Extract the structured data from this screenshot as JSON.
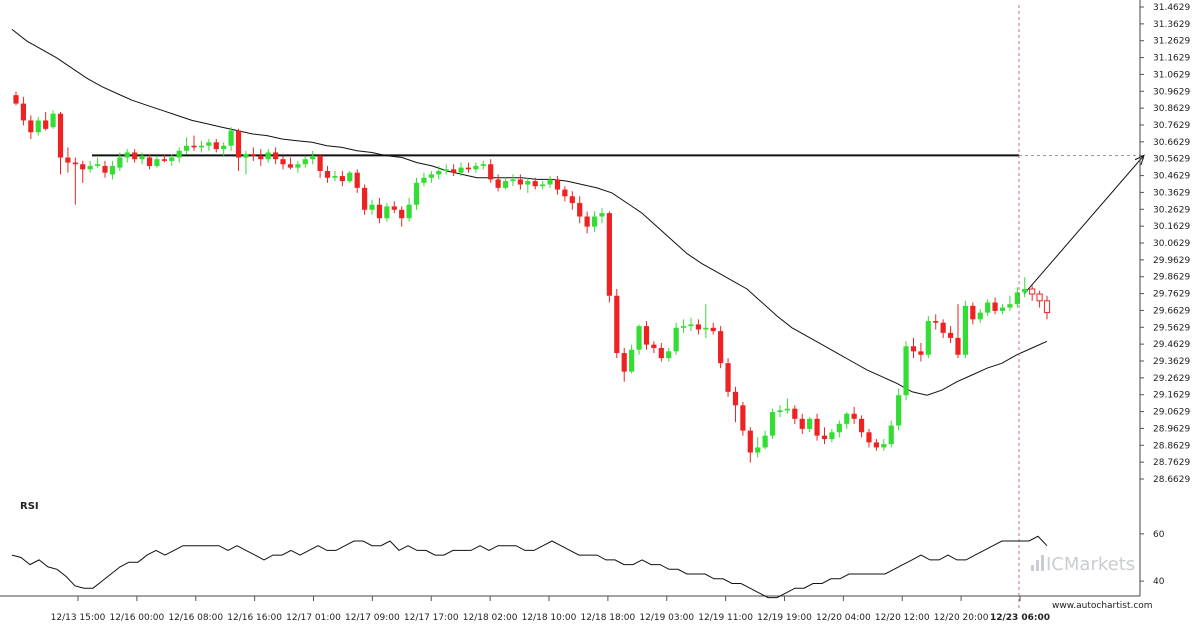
{
  "chart_data": {
    "type": "candlestick",
    "y_ticks": [
      "31.4629",
      "31.3629",
      "31.2629",
      "31.1629",
      "31.0629",
      "30.9629",
      "30.8629",
      "30.7629",
      "30.6629",
      "30.5629",
      "30.4629",
      "30.3629",
      "30.2629",
      "30.1629",
      "30.0629",
      "29.9629",
      "29.8629",
      "29.7629",
      "29.6629",
      "29.5629",
      "29.4629",
      "29.3629",
      "29.2629",
      "29.1629",
      "29.0629",
      "28.9629",
      "28.8629",
      "28.7629",
      "28.6629"
    ],
    "ylim": [
      28.6629,
      31.4629
    ],
    "x_ticks": [
      "12/13 15:00",
      "12/16 00:00",
      "12/16 08:00",
      "12/16 16:00",
      "12/17 01:00",
      "12/17 09:00",
      "12/17 17:00",
      "12/18 02:00",
      "12/18 10:00",
      "12/18 18:00",
      "12/19 03:00",
      "12/19 11:00",
      "12/19 19:00",
      "12/20 04:00",
      "12/20 12:00",
      "12/20 20:00",
      "12/23 06:00"
    ],
    "highlighted_x_tick": "12/23 06:00",
    "candles": [
      {
        "o": 30.94,
        "h": 30.96,
        "c": 30.89,
        "l": 30.88
      },
      {
        "o": 30.89,
        "h": 30.93,
        "c": 30.79,
        "l": 30.76
      },
      {
        "o": 30.79,
        "h": 30.82,
        "c": 30.72,
        "l": 30.68
      },
      {
        "o": 30.72,
        "h": 30.81,
        "c": 30.79,
        "l": 30.7
      },
      {
        "o": 30.79,
        "h": 30.84,
        "c": 30.74,
        "l": 30.73
      },
      {
        "o": 30.75,
        "h": 30.85,
        "c": 30.83,
        "l": 30.74
      },
      {
        "o": 30.83,
        "h": 30.84,
        "c": 30.57,
        "l": 30.47
      },
      {
        "o": 30.57,
        "h": 30.63,
        "c": 30.54,
        "l": 30.48
      },
      {
        "o": 30.54,
        "h": 30.57,
        "c": 30.53,
        "l": 30.29
      },
      {
        "o": 30.53,
        "h": 30.55,
        "c": 30.5,
        "l": 30.42
      },
      {
        "o": 30.5,
        "h": 30.55,
        "c": 30.52,
        "l": 30.48
      },
      {
        "o": 30.52,
        "h": 30.57,
        "c": 30.53,
        "l": 30.51
      },
      {
        "o": 30.52,
        "h": 30.55,
        "c": 30.48,
        "l": 30.45
      },
      {
        "o": 30.47,
        "h": 30.55,
        "c": 30.52,
        "l": 30.44
      },
      {
        "o": 30.51,
        "h": 30.6,
        "c": 30.57,
        "l": 30.49
      },
      {
        "o": 30.57,
        "h": 30.62,
        "c": 30.6,
        "l": 30.54
      },
      {
        "o": 30.6,
        "h": 30.62,
        "c": 30.56,
        "l": 30.54
      },
      {
        "o": 30.56,
        "h": 30.6,
        "c": 30.58,
        "l": 30.53
      },
      {
        "o": 30.57,
        "h": 30.59,
        "c": 30.52,
        "l": 30.5
      },
      {
        "o": 30.52,
        "h": 30.58,
        "c": 30.56,
        "l": 30.51
      },
      {
        "o": 30.56,
        "h": 30.59,
        "c": 30.55,
        "l": 30.54
      },
      {
        "o": 30.55,
        "h": 30.59,
        "c": 30.57,
        "l": 30.52
      },
      {
        "o": 30.57,
        "h": 30.63,
        "c": 30.61,
        "l": 30.54
      },
      {
        "o": 30.61,
        "h": 30.69,
        "c": 30.64,
        "l": 30.59
      },
      {
        "o": 30.64,
        "h": 30.7,
        "c": 30.63,
        "l": 30.61
      },
      {
        "o": 30.63,
        "h": 30.67,
        "c": 30.64,
        "l": 30.6
      },
      {
        "o": 30.64,
        "h": 30.68,
        "c": 30.66,
        "l": 30.61
      },
      {
        "o": 30.66,
        "h": 30.68,
        "c": 30.62,
        "l": 30.6
      },
      {
        "o": 30.62,
        "h": 30.66,
        "c": 30.64,
        "l": 30.58
      },
      {
        "o": 30.64,
        "h": 30.75,
        "c": 30.73,
        "l": 30.61
      },
      {
        "o": 30.73,
        "h": 30.74,
        "c": 30.57,
        "l": 30.49
      },
      {
        "o": 30.57,
        "h": 30.61,
        "c": 30.59,
        "l": 30.47
      },
      {
        "o": 30.59,
        "h": 30.63,
        "c": 30.58,
        "l": 30.55
      },
      {
        "o": 30.58,
        "h": 30.62,
        "c": 30.56,
        "l": 30.52
      },
      {
        "o": 30.56,
        "h": 30.62,
        "c": 30.6,
        "l": 30.54
      },
      {
        "o": 30.6,
        "h": 30.63,
        "c": 30.56,
        "l": 30.53
      },
      {
        "o": 30.56,
        "h": 30.58,
        "c": 30.53,
        "l": 30.5
      },
      {
        "o": 30.53,
        "h": 30.57,
        "c": 30.51,
        "l": 30.5
      },
      {
        "o": 30.51,
        "h": 30.55,
        "c": 30.53,
        "l": 30.48
      },
      {
        "o": 30.53,
        "h": 30.58,
        "c": 30.56,
        "l": 30.51
      },
      {
        "o": 30.56,
        "h": 30.61,
        "c": 30.58,
        "l": 30.53
      },
      {
        "o": 30.58,
        "h": 30.59,
        "c": 30.49,
        "l": 30.45
      },
      {
        "o": 30.49,
        "h": 30.52,
        "c": 30.45,
        "l": 30.42
      },
      {
        "o": 30.45,
        "h": 30.49,
        "c": 30.46,
        "l": 30.43
      },
      {
        "o": 30.46,
        "h": 30.49,
        "c": 30.43,
        "l": 30.4
      },
      {
        "o": 30.43,
        "h": 30.49,
        "c": 30.48,
        "l": 30.42
      },
      {
        "o": 30.48,
        "h": 30.5,
        "c": 30.39,
        "l": 30.36
      },
      {
        "o": 30.39,
        "h": 30.41,
        "c": 30.26,
        "l": 30.23
      },
      {
        "o": 30.26,
        "h": 30.32,
        "c": 30.29,
        "l": 30.23
      },
      {
        "o": 30.29,
        "h": 30.33,
        "c": 30.21,
        "l": 30.18
      },
      {
        "o": 30.21,
        "h": 30.3,
        "c": 30.28,
        "l": 30.19
      },
      {
        "o": 30.28,
        "h": 30.31,
        "c": 30.26,
        "l": 30.24
      },
      {
        "o": 30.26,
        "h": 30.28,
        "c": 30.21,
        "l": 30.16
      },
      {
        "o": 30.21,
        "h": 30.33,
        "c": 30.29,
        "l": 30.19
      },
      {
        "o": 30.29,
        "h": 30.45,
        "c": 30.42,
        "l": 30.26
      },
      {
        "o": 30.42,
        "h": 30.48,
        "c": 30.45,
        "l": 30.4
      },
      {
        "o": 30.45,
        "h": 30.49,
        "c": 30.47,
        "l": 30.42
      },
      {
        "o": 30.47,
        "h": 30.52,
        "c": 30.49,
        "l": 30.44
      },
      {
        "o": 30.49,
        "h": 30.53,
        "c": 30.5,
        "l": 30.47
      },
      {
        "o": 30.5,
        "h": 30.53,
        "c": 30.48,
        "l": 30.46
      },
      {
        "o": 30.48,
        "h": 30.54,
        "c": 30.51,
        "l": 30.46
      },
      {
        "o": 30.51,
        "h": 30.54,
        "c": 30.5,
        "l": 30.48
      },
      {
        "o": 30.5,
        "h": 30.54,
        "c": 30.52,
        "l": 30.48
      },
      {
        "o": 30.52,
        "h": 30.55,
        "c": 30.53,
        "l": 30.5
      },
      {
        "o": 30.53,
        "h": 30.56,
        "c": 30.44,
        "l": 30.42
      },
      {
        "o": 30.44,
        "h": 30.47,
        "c": 30.39,
        "l": 30.37
      },
      {
        "o": 30.39,
        "h": 30.45,
        "c": 30.43,
        "l": 30.38
      },
      {
        "o": 30.43,
        "h": 30.47,
        "c": 30.44,
        "l": 30.4
      },
      {
        "o": 30.44,
        "h": 30.47,
        "c": 30.41,
        "l": 30.38
      },
      {
        "o": 30.41,
        "h": 30.45,
        "c": 30.43,
        "l": 30.36
      },
      {
        "o": 30.43,
        "h": 30.45,
        "c": 30.4,
        "l": 30.38
      },
      {
        "o": 30.4,
        "h": 30.43,
        "c": 30.41,
        "l": 30.38
      },
      {
        "o": 30.41,
        "h": 30.46,
        "c": 30.44,
        "l": 30.39
      },
      {
        "o": 30.44,
        "h": 30.46,
        "c": 30.38,
        "l": 30.35
      },
      {
        "o": 30.38,
        "h": 30.4,
        "c": 30.34,
        "l": 30.31
      },
      {
        "o": 30.34,
        "h": 30.37,
        "c": 30.3,
        "l": 30.26
      },
      {
        "o": 30.3,
        "h": 30.34,
        "c": 30.22,
        "l": 30.18
      },
      {
        "o": 30.22,
        "h": 30.25,
        "c": 30.16,
        "l": 30.12
      },
      {
        "o": 30.16,
        "h": 30.25,
        "c": 30.22,
        "l": 30.13
      },
      {
        "o": 30.22,
        "h": 30.27,
        "c": 30.24,
        "l": 30.18
      },
      {
        "o": 30.24,
        "h": 30.25,
        "c": 29.75,
        "l": 29.71
      },
      {
        "o": 29.75,
        "h": 29.79,
        "c": 29.41,
        "l": 29.38
      },
      {
        "o": 29.41,
        "h": 29.44,
        "c": 29.3,
        "l": 29.24
      },
      {
        "o": 29.3,
        "h": 29.46,
        "c": 29.43,
        "l": 29.29
      },
      {
        "o": 29.43,
        "h": 29.58,
        "c": 29.57,
        "l": 29.4
      },
      {
        "o": 29.57,
        "h": 29.6,
        "c": 29.46,
        "l": 29.43
      },
      {
        "o": 29.46,
        "h": 29.48,
        "c": 29.44,
        "l": 29.41
      },
      {
        "o": 29.44,
        "h": 29.47,
        "c": 29.38,
        "l": 29.36
      },
      {
        "o": 29.38,
        "h": 29.44,
        "c": 29.42,
        "l": 29.36
      },
      {
        "o": 29.42,
        "h": 29.59,
        "c": 29.56,
        "l": 29.4
      },
      {
        "o": 29.56,
        "h": 29.61,
        "c": 29.57,
        "l": 29.53
      },
      {
        "o": 29.57,
        "h": 29.62,
        "c": 29.58,
        "l": 29.54
      },
      {
        "o": 29.58,
        "h": 29.61,
        "c": 29.55,
        "l": 29.52
      },
      {
        "o": 29.55,
        "h": 29.7,
        "c": 29.56,
        "l": 29.5
      },
      {
        "o": 29.56,
        "h": 29.59,
        "c": 29.54,
        "l": 29.52
      },
      {
        "o": 29.54,
        "h": 29.57,
        "c": 29.35,
        "l": 29.32
      },
      {
        "o": 29.35,
        "h": 29.38,
        "c": 29.18,
        "l": 29.15
      },
      {
        "o": 29.18,
        "h": 29.21,
        "c": 29.1,
        "l": 29.0
      },
      {
        "o": 29.1,
        "h": 29.12,
        "c": 28.95,
        "l": 28.92
      },
      {
        "o": 28.95,
        "h": 28.97,
        "c": 28.82,
        "l": 28.76
      },
      {
        "o": 28.82,
        "h": 28.91,
        "c": 28.85,
        "l": 28.79
      },
      {
        "o": 28.85,
        "h": 28.95,
        "c": 28.92,
        "l": 28.84
      },
      {
        "o": 28.92,
        "h": 29.08,
        "c": 29.06,
        "l": 28.9
      },
      {
        "o": 29.06,
        "h": 29.1,
        "c": 29.07,
        "l": 29.03
      },
      {
        "o": 29.07,
        "h": 29.14,
        "c": 29.08,
        "l": 29.05
      },
      {
        "o": 29.08,
        "h": 29.1,
        "c": 29.02,
        "l": 28.99
      },
      {
        "o": 29.02,
        "h": 29.05,
        "c": 28.96,
        "l": 28.93
      },
      {
        "o": 28.96,
        "h": 29.03,
        "c": 29.02,
        "l": 28.94
      },
      {
        "o": 29.02,
        "h": 29.05,
        "c": 28.92,
        "l": 28.89
      },
      {
        "o": 28.92,
        "h": 28.97,
        "c": 28.9,
        "l": 28.87
      },
      {
        "o": 28.9,
        "h": 28.96,
        "c": 28.94,
        "l": 28.88
      },
      {
        "o": 28.94,
        "h": 29.01,
        "c": 28.99,
        "l": 28.91
      },
      {
        "o": 28.99,
        "h": 29.06,
        "c": 29.05,
        "l": 28.96
      },
      {
        "o": 29.05,
        "h": 29.09,
        "c": 29.02,
        "l": 28.99
      },
      {
        "o": 29.02,
        "h": 29.04,
        "c": 28.94,
        "l": 28.91
      },
      {
        "o": 28.94,
        "h": 28.96,
        "c": 28.88,
        "l": 28.85
      },
      {
        "o": 28.88,
        "h": 28.9,
        "c": 28.85,
        "l": 28.83
      },
      {
        "o": 28.85,
        "h": 28.9,
        "c": 28.87,
        "l": 28.83
      },
      {
        "o": 28.87,
        "h": 29.01,
        "c": 28.98,
        "l": 28.85
      },
      {
        "o": 28.98,
        "h": 29.2,
        "c": 29.16,
        "l": 28.95
      },
      {
        "o": 29.16,
        "h": 29.48,
        "c": 29.45,
        "l": 29.13
      },
      {
        "o": 29.45,
        "h": 29.5,
        "c": 29.42,
        "l": 29.38
      },
      {
        "o": 29.42,
        "h": 29.47,
        "c": 29.4,
        "l": 29.36
      },
      {
        "o": 29.4,
        "h": 29.63,
        "c": 29.6,
        "l": 29.38
      },
      {
        "o": 29.6,
        "h": 29.64,
        "c": 29.59,
        "l": 29.55
      },
      {
        "o": 29.59,
        "h": 29.61,
        "c": 29.53,
        "l": 29.5
      },
      {
        "o": 29.53,
        "h": 29.57,
        "c": 29.5,
        "l": 29.47
      },
      {
        "o": 29.5,
        "h": 29.7,
        "c": 29.4,
        "l": 29.38
      },
      {
        "o": 29.4,
        "h": 29.72,
        "c": 29.69,
        "l": 29.38
      },
      {
        "o": 29.69,
        "h": 29.71,
        "c": 29.61,
        "l": 29.58
      },
      {
        "o": 29.61,
        "h": 29.67,
        "c": 29.65,
        "l": 29.59
      },
      {
        "o": 29.65,
        "h": 29.73,
        "c": 29.71,
        "l": 29.63
      },
      {
        "o": 29.71,
        "h": 29.74,
        "c": 29.66,
        "l": 29.64
      },
      {
        "o": 29.66,
        "h": 29.7,
        "c": 29.68,
        "l": 29.64
      },
      {
        "o": 29.68,
        "h": 29.75,
        "c": 29.7,
        "l": 29.66
      },
      {
        "o": 29.7,
        "h": 29.8,
        "c": 29.77,
        "l": 29.68
      },
      {
        "o": 29.77,
        "h": 29.86,
        "c": 29.79,
        "l": 29.74
      },
      {
        "o": 29.79,
        "h": 29.81,
        "c": 29.76,
        "l": 29.72
      },
      {
        "o": 29.76,
        "h": 29.78,
        "c": 29.72,
        "l": 29.68
      },
      {
        "o": 29.72,
        "h": 29.75,
        "c": 29.65,
        "l": 29.61
      }
    ],
    "moving_average": [
      31.33,
      31.26,
      31.21,
      31.16,
      31.1,
      31.04,
      30.99,
      30.95,
      30.91,
      30.88,
      30.85,
      30.82,
      30.79,
      30.77,
      30.75,
      30.73,
      30.71,
      30.7,
      30.68,
      30.67,
      30.66,
      30.64,
      30.63,
      30.61,
      30.6,
      30.58,
      30.57,
      30.54,
      30.52,
      30.49,
      30.47,
      30.45,
      30.45,
      30.45,
      30.45,
      30.44,
      30.44,
      30.43,
      30.41,
      30.39,
      30.36,
      30.3,
      30.24,
      30.16,
      30.08,
      30.0,
      29.94,
      29.89,
      29.84,
      29.79,
      29.71,
      29.63,
      29.56,
      29.51,
      29.46,
      29.41,
      29.36,
      29.31,
      29.27,
      29.23,
      29.18,
      29.16,
      29.19,
      29.24,
      29.28,
      29.32,
      29.35,
      29.4,
      29.44,
      29.48
    ],
    "horizontal_level": 30.5829,
    "projection": {
      "from": 29.76,
      "to": 30.5829
    },
    "rsi": {
      "label": "RSI",
      "y_ticks": [
        "60",
        "40"
      ],
      "ylim": [
        32,
        68
      ],
      "values": [
        51,
        50,
        47,
        49,
        46,
        45,
        42,
        38,
        37,
        37,
        40,
        43,
        46,
        48,
        48,
        51,
        53,
        51,
        53,
        55,
        55,
        55,
        55,
        55,
        53,
        55,
        53,
        51,
        49,
        51,
        51,
        53,
        51,
        53,
        55,
        53,
        53,
        55,
        57,
        57,
        55,
        55,
        57,
        53,
        55,
        53,
        53,
        51,
        51,
        53,
        53,
        53,
        55,
        53,
        55,
        55,
        55,
        53,
        53,
        55,
        57,
        55,
        53,
        51,
        51,
        51,
        49,
        49,
        47,
        47,
        49,
        47,
        47,
        45,
        45,
        43,
        43,
        43,
        41,
        41,
        39,
        39,
        37,
        35,
        33,
        33,
        35,
        37,
        37,
        39,
        39,
        41,
        41,
        43,
        43,
        43,
        43,
        43,
        45,
        47,
        49,
        51,
        49,
        49,
        51,
        49,
        49,
        51,
        53,
        55,
        57,
        57,
        57,
        57,
        59,
        55
      ]
    },
    "watermark": "ICMarkets",
    "site": "www.autochartist.com"
  }
}
